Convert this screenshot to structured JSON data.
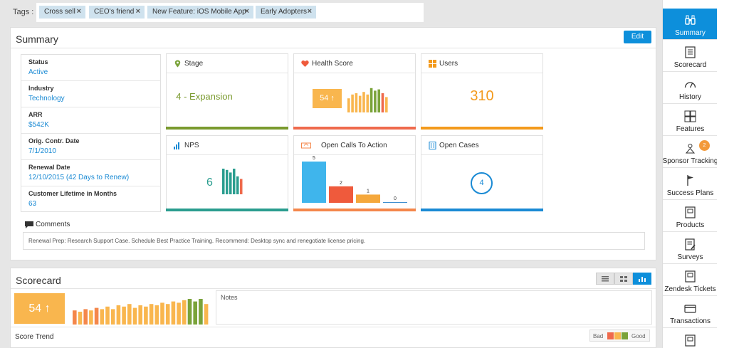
{
  "tags": {
    "label": "Tags :",
    "items": [
      "Cross sell",
      "CEO's friend",
      "New Feature: iOS Mobile App",
      "Early Adopters"
    ],
    "remove_glyph": "×"
  },
  "summary": {
    "title": "Summary",
    "edit_label": "Edit",
    "info": [
      {
        "key": "Status",
        "value": "Active"
      },
      {
        "key": "Industry",
        "value": "Technology"
      },
      {
        "key": "ARR",
        "value": "$542K"
      },
      {
        "key": "Orig. Contr. Date",
        "value": "7/1/2010"
      },
      {
        "key": "Renewal Date",
        "value": "12/10/2015 (42 Days to Renew)"
      },
      {
        "key": "Customer Lifetime in Months",
        "value": "63"
      }
    ],
    "tiles": {
      "stage": {
        "title": "Stage",
        "value": "4 - Expansion",
        "icon": "map-pin-icon",
        "accent": "#7a9a2e"
      },
      "health": {
        "title": "Health Score",
        "value": "54 ↑",
        "icon": "heart-icon",
        "accent": "#ef6a4c"
      },
      "users": {
        "title": "Users",
        "value": "310",
        "icon": "grid-icon",
        "accent": "#f39a1c"
      },
      "nps": {
        "title": "NPS",
        "value": "6",
        "icon": "bar-chart-icon",
        "accent": "#2a9d8f"
      },
      "calls": {
        "title": "Open Calls To Action",
        "icon": "ticket-icon",
        "accent": "#f4874b"
      },
      "cases": {
        "title": "Open Cases",
        "value": "4",
        "icon": "document-icon",
        "accent": "#1a8ad4"
      }
    },
    "calls_chart": {
      "type": "bar",
      "values": [
        5,
        2,
        1,
        0
      ],
      "colors": [
        "#3fb5ec",
        "#ef5a3c",
        "#f5a83c",
        "#3f8fd0"
      ]
    },
    "comments_title": "Comments",
    "comments_text": "Renewal Prep: Research Support Case. Schedule Best Practice Training. Recommend: Desktop sync and renegotiate license pricing."
  },
  "scorecard": {
    "title": "Scorecard",
    "score": "54 ↑",
    "notes_label": "Notes",
    "score_trend_label": "Score Trend",
    "legend_bad": "Bad",
    "legend_good": "Good",
    "view_buttons": [
      "list-view-icon",
      "grid-view-icon",
      "chart-view-icon"
    ]
  },
  "colors": {
    "primary": "#0d8fdb",
    "orange": "#f9b64e",
    "red": "#ef6a4c",
    "green": "#7aa33a",
    "teal": "#2a9d8f"
  },
  "sidebar": {
    "items": [
      {
        "label": "Summary",
        "icon": "binoculars-icon"
      },
      {
        "label": "Scorecard",
        "icon": "scorecard-icon"
      },
      {
        "label": "History",
        "icon": "gauge-icon"
      },
      {
        "label": "Features",
        "icon": "puzzle-icon"
      },
      {
        "label": "Sponsor Tracking",
        "icon": "sponsor-icon"
      },
      {
        "label": "Success Plans",
        "icon": "flag-icon"
      },
      {
        "label": "Products",
        "icon": "products-icon"
      },
      {
        "label": "Surveys",
        "icon": "survey-icon"
      },
      {
        "label": "Zendesk Tickets",
        "icon": "zendesk-icon"
      },
      {
        "label": "Transactions",
        "icon": "card-icon"
      }
    ],
    "sponsor_badge": "2"
  }
}
